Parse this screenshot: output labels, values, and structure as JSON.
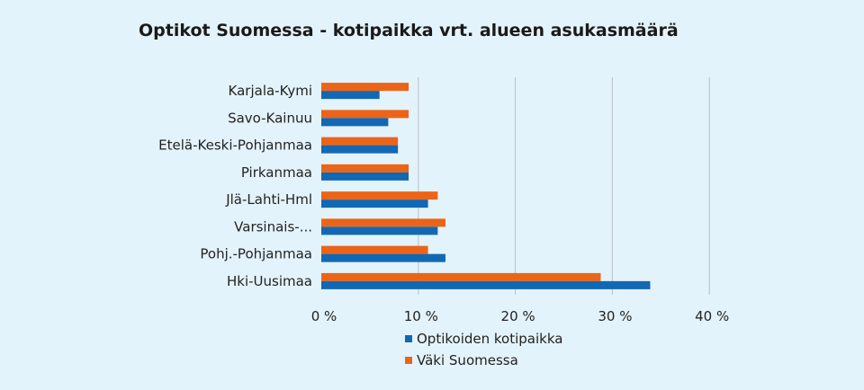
{
  "colors": {
    "background": "#e3f3fb",
    "gridline": "#b9bec2",
    "series_1": "#1268b3",
    "series_2": "#ec6418"
  },
  "chart_data": {
    "type": "bar",
    "orientation": "horizontal",
    "title": "Optikot Suomessa - kotipaikka vrt. alueen asukasmäärä",
    "xlabel": "",
    "ylabel": "",
    "categories": [
      "Karjala-Kymi",
      "Savo-Kainuu",
      "Etelä-Keski-Pohjanmaa",
      "Pirkanmaa",
      "Jlä-Lahti-Hml",
      "Varsinais-...",
      "Pohj.-Pohjanmaa",
      "Hki-Uusimaa"
    ],
    "series": [
      {
        "name": "Optikoiden kotipaikka",
        "color": "#1268b3",
        "values": [
          6.0,
          6.9,
          7.9,
          9.0,
          11.0,
          12.0,
          12.8,
          33.9
        ]
      },
      {
        "name": "Väki Suomessa",
        "color": "#ec6418",
        "values": [
          9.0,
          9.0,
          7.9,
          9.0,
          12.0,
          12.8,
          11.0,
          28.8
        ]
      }
    ],
    "x_ticks": [
      "0 %",
      "10 %",
      "20 %",
      "30 %",
      "40 %"
    ],
    "xlim": [
      0,
      40
    ],
    "grid": true,
    "legend_position": "bottom"
  }
}
